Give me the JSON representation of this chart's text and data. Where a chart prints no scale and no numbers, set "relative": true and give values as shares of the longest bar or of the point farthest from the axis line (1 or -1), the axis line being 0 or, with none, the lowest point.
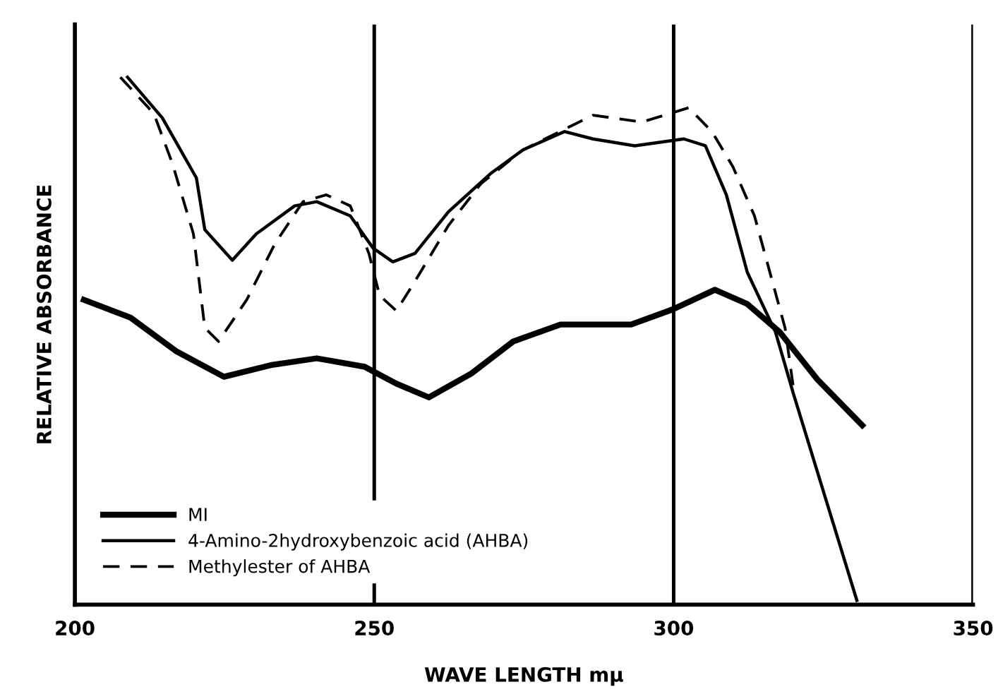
{
  "chart_data": {
    "type": "line",
    "xlabel": "WAVE LENGTH mμ",
    "ylabel": "RELATIVE ABSORBANCE",
    "relative": true,
    "xlim": [
      200,
      350
    ],
    "xticks": [
      200,
      250,
      300,
      350
    ],
    "tick_labels": "x",
    "grid": "x",
    "legend": "bottom left",
    "marker": "none",
    "series": [
      {
        "name": "MI",
        "color": "#000000",
        "line_style": "solid",
        "x": [
          201.5,
          209.3,
          217.0,
          224.9,
          232.7,
          240.4,
          248.4,
          253.7,
          259.1,
          266.2,
          273.2,
          281.1,
          292.9,
          299.9,
          306.9,
          312.3,
          317.7,
          324.0,
          331.5
        ],
        "values": [
          0.578,
          0.544,
          0.48,
          0.432,
          0.454,
          0.467,
          0.451,
          0.419,
          0.393,
          0.438,
          0.499,
          0.531,
          0.531,
          0.56,
          0.597,
          0.57,
          0.517,
          0.427,
          0.34
        ]
      },
      {
        "name": "4-Amino-2hydroxybenzoic acid (AHBA)",
        "color": "#000000",
        "line_style": "solid",
        "x": [
          208.8,
          214.6,
          220.3,
          221.7,
          226.3,
          230.3,
          236.7,
          240.4,
          246.0,
          249.8,
          253.1,
          256.8,
          262.4,
          269.4,
          274.8,
          281.8,
          286.5,
          293.5,
          301.7,
          305.3,
          308.8,
          312.3,
          317.0,
          320.0,
          330.6
        ],
        "values": [
          1.0,
          0.923,
          0.809,
          0.711,
          0.653,
          0.703,
          0.756,
          0.764,
          0.737,
          0.676,
          0.65,
          0.666,
          0.745,
          0.817,
          0.862,
          0.897,
          0.883,
          0.87,
          0.883,
          0.87,
          0.777,
          0.63,
          0.517,
          0.4,
          0.008
        ]
      },
      {
        "name": "Methylester of AHBA",
        "color": "#000000",
        "line_style": "dashed",
        "x": [
          207.6,
          213.2,
          216.3,
          219.8,
          221.7,
          224.0,
          228.7,
          233.4,
          238.1,
          242.0,
          246.0,
          249.1,
          250.9,
          253.7,
          256.8,
          262.4,
          267.8,
          274.8,
          286.5,
          294.7,
          302.5,
          306.4,
          309.9,
          313.5,
          318.6,
          320.0
        ],
        "values": [
          1.0,
          0.931,
          0.836,
          0.703,
          0.525,
          0.499,
          0.578,
          0.684,
          0.764,
          0.777,
          0.756,
          0.666,
          0.586,
          0.557,
          0.613,
          0.719,
          0.798,
          0.862,
          0.928,
          0.915,
          0.942,
          0.897,
          0.83,
          0.737,
          0.525,
          0.411
        ]
      }
    ]
  }
}
